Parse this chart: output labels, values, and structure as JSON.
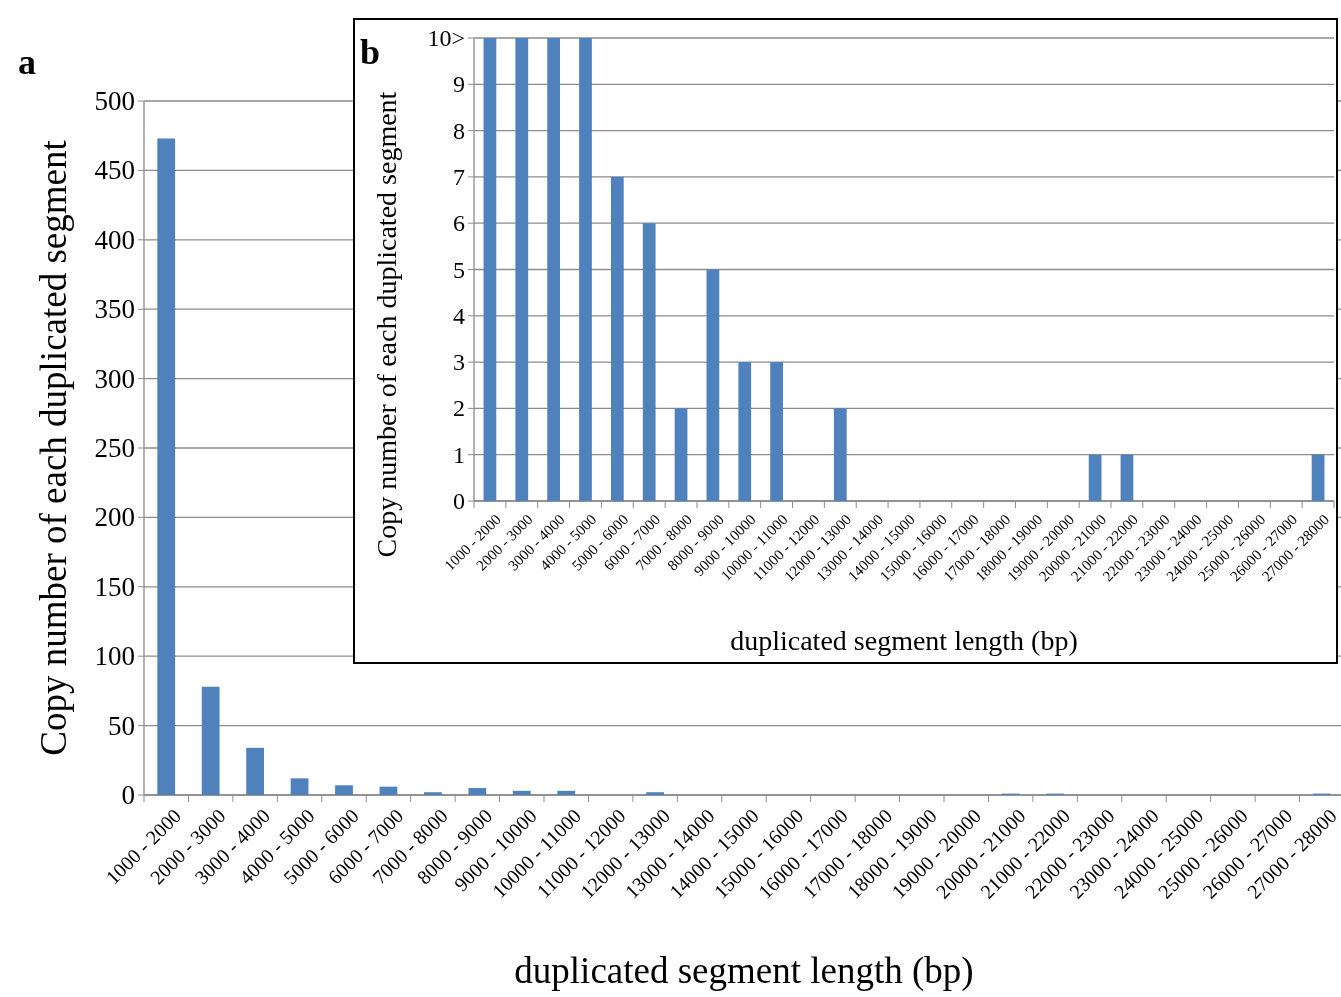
{
  "chart_data": [
    {
      "type": "bar",
      "annotations": [
        "a"
      ],
      "xlabel": "duplicated segment length (bp)",
      "ylabel": "Copy number of each duplicated segment",
      "categories": [
        "1000 - 2000",
        "2000 - 3000",
        "3000 - 4000",
        "4000 - 5000",
        "5000 - 6000",
        "6000 - 7000",
        "7000 - 8000",
        "8000 - 9000",
        "9000 - 10000",
        "10000 - 11000",
        "11000 - 12000",
        "12000 - 13000",
        "13000 - 14000",
        "14000 - 15000",
        "15000 - 16000",
        "16000 - 17000",
        "17000 - 18000",
        "18000 - 19000",
        "19000 - 20000",
        "20000 - 21000",
        "21000 - 22000",
        "22000 - 23000",
        "23000 - 24000",
        "24000 - 25000",
        "25000 - 26000",
        "26000 - 27000",
        "27000 - 28000"
      ],
      "values": [
        473,
        78,
        34,
        12,
        7,
        6,
        2,
        5,
        3,
        3,
        0,
        2,
        0,
        0,
        0,
        0,
        0,
        0,
        0,
        1,
        1,
        0,
        0,
        0,
        0,
        0,
        1
      ],
      "color": "#4f81bd",
      "ylim": [
        0,
        500
      ],
      "yticks": [
        0,
        50,
        100,
        150,
        200,
        250,
        300,
        350,
        400,
        450,
        500
      ],
      "grid": "y"
    },
    {
      "type": "bar",
      "annotations": [
        "b"
      ],
      "xlabel": "duplicated segment length (bp)",
      "ylabel": "Copy number of each duplicated segment",
      "categories": [
        "1000 - 2000",
        "2000 - 3000",
        "3000 - 4000",
        "4000 - 5000",
        "5000 - 6000",
        "6000 - 7000",
        "7000 - 8000",
        "8000 - 9000",
        "9000 - 10000",
        "10000 - 11000",
        "11000 - 12000",
        "12000 - 13000",
        "13000 - 14000",
        "14000 - 15000",
        "15000 - 16000",
        "16000 - 17000",
        "17000 - 18000",
        "18000 - 19000",
        "19000 - 20000",
        "20000 - 21000",
        "21000 - 22000",
        "22000 - 23000",
        "23000 - 24000",
        "24000 - 25000",
        "25000 - 26000",
        "26000 - 27000",
        "27000 - 28000"
      ],
      "values": [
        10,
        10,
        10,
        10,
        7,
        6,
        2,
        5,
        3,
        3,
        0,
        2,
        0,
        0,
        0,
        0,
        0,
        0,
        0,
        1,
        1,
        0,
        0,
        0,
        0,
        0,
        1
      ],
      "color": "#4f81bd",
      "ylim": [
        0,
        10
      ],
      "yticks": [
        0,
        1,
        2,
        3,
        4,
        5,
        6,
        7,
        8,
        9,
        {
          "value": 10,
          "label": "10>"
        }
      ],
      "grid": "y"
    }
  ]
}
